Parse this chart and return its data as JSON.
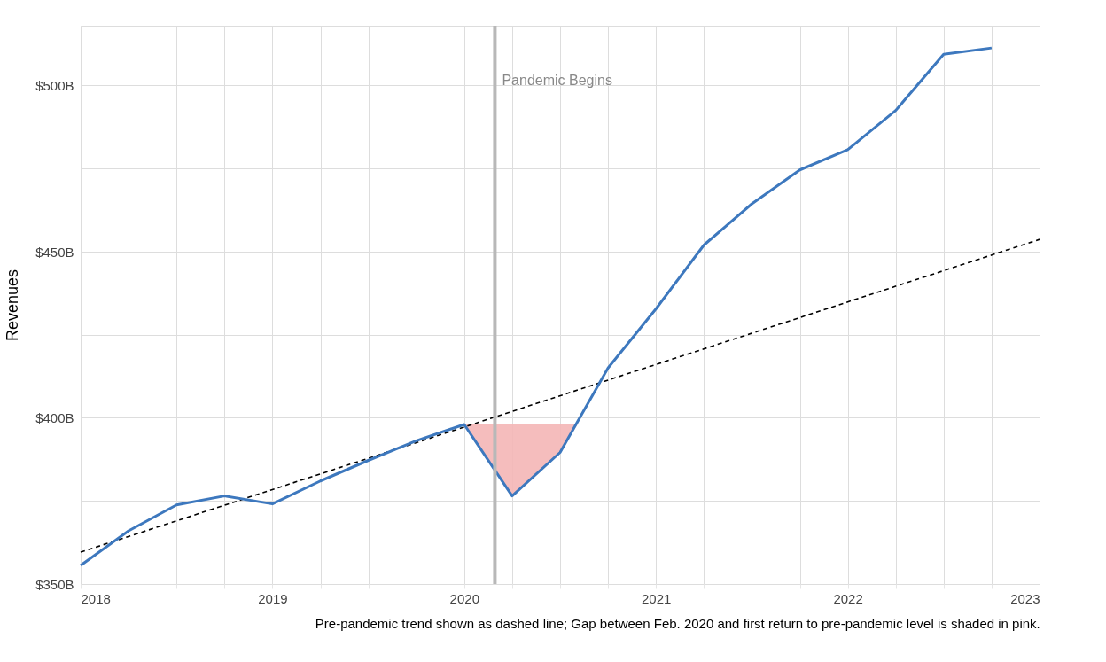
{
  "chart_data": {
    "type": "line",
    "ylabel": "Revenues",
    "xlim": [
      2018,
      2023
    ],
    "ylim": [
      350,
      518
    ],
    "xticks": [
      2018,
      {
        "value": 2018.25,
        "label": null
      },
      {
        "value": 2018.5,
        "label": null
      },
      {
        "value": 2018.75,
        "label": null
      },
      2019,
      {
        "value": 2019.25,
        "label": null
      },
      {
        "value": 2019.5,
        "label": null
      },
      {
        "value": 2019.75,
        "label": null
      },
      2020,
      {
        "value": 2020.25,
        "label": null
      },
      {
        "value": 2020.5,
        "label": null
      },
      {
        "value": 2020.75,
        "label": null
      },
      2021,
      {
        "value": 2021.25,
        "label": null
      },
      {
        "value": 2021.5,
        "label": null
      },
      {
        "value": 2021.75,
        "label": null
      },
      2022,
      {
        "value": 2022.25,
        "label": null
      },
      {
        "value": 2022.5,
        "label": null
      },
      {
        "value": 2022.75,
        "label": null
      },
      2023
    ],
    "yticks": [
      {
        "value": 350,
        "label": "$350B"
      },
      {
        "value": 375,
        "label": null
      },
      {
        "value": 400,
        "label": "$400B"
      },
      {
        "value": 425,
        "label": null
      },
      {
        "value": 450,
        "label": "$450B"
      },
      {
        "value": 475,
        "label": null
      },
      {
        "value": 500,
        "label": "$500B"
      }
    ],
    "grid": true,
    "marker": "none",
    "series": [
      {
        "type": "area",
        "color": "#f4b6b6",
        "x": [
          2020,
          2020.25,
          2020.5,
          2020.59
        ],
        "values": [
          398,
          376.5,
          389.6,
          398
        ]
      },
      {
        "type": "line",
        "color": "#000000",
        "line_style": "dashed",
        "x": [
          2018,
          2023
        ],
        "values": [
          359.6,
          453.7
        ]
      },
      {
        "color": "#3d78be",
        "line_style": "solid",
        "x": [
          2018,
          2018.25,
          2018.5,
          2018.75,
          2019,
          2019.25,
          2019.5,
          2019.75,
          2020,
          2020.25,
          2020.5,
          2020.75,
          2021,
          2021.25,
          2021.5,
          2021.75,
          2022,
          2022.25,
          2022.5,
          2022.75
        ],
        "values": [
          355.6,
          366,
          373.8,
          376.5,
          374.1,
          381,
          387.2,
          393.1,
          398,
          376.5,
          389.6,
          415,
          432.8,
          452,
          464.4,
          474.6,
          480.7,
          492.5,
          509.4,
          511.3
        ]
      }
    ],
    "ref_lines": [
      {
        "axis": "x",
        "value": 2020.16,
        "label": "Pandemic Begins",
        "color": "#b8b8b8"
      }
    ],
    "annotations": [
      "Pre-pandemic trend shown as dashed line; Gap between Feb. 2020 and first return to pre-pandemic level is shaded in pink."
    ]
  }
}
